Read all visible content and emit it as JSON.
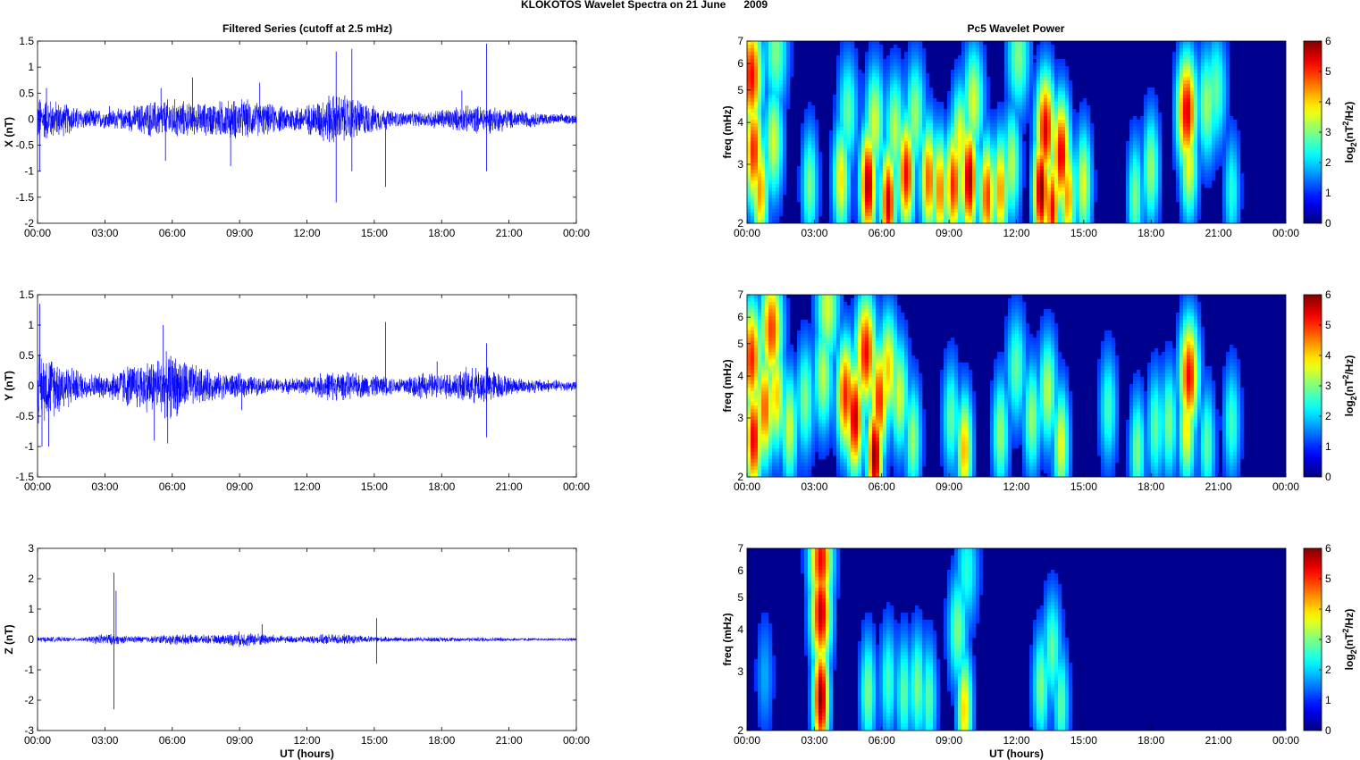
{
  "figure": {
    "title": "KLOKOTOS Wavelet Spectra on 21 June      2009",
    "left_title": "Filtered Series (cutoff at 2.5 mHz)",
    "right_title": "Pc5 Wavelet Power",
    "colors": {
      "trace": "#0000ff",
      "axes": "#000000",
      "background": "#00008f"
    }
  },
  "chart_data": [
    {
      "type": "line",
      "ylabel": "X (nT)",
      "xlabel": "",
      "xticks": [
        "00:00",
        "03:00",
        "06:00",
        "09:00",
        "12:00",
        "15:00",
        "18:00",
        "21:00",
        "00:00"
      ],
      "yticks": [
        "1.5",
        "1",
        "0.5",
        "0",
        "-0.5",
        "-1",
        "-1.5",
        "-2"
      ],
      "ylim": [
        -2,
        1.5
      ],
      "series": [
        {
          "color": "#0000ff",
          "activity_hours": [
            0,
            1,
            2,
            3,
            4,
            5,
            6,
            7,
            8,
            9,
            10,
            11,
            12,
            13,
            14,
            15,
            16,
            17,
            18,
            19,
            20,
            21,
            22,
            23,
            24
          ],
          "activity_amplitude": [
            0.45,
            0.35,
            0.2,
            0.18,
            0.22,
            0.35,
            0.4,
            0.3,
            0.35,
            0.4,
            0.32,
            0.25,
            0.28,
            0.5,
            0.45,
            0.25,
            0.15,
            0.14,
            0.2,
            0.25,
            0.28,
            0.2,
            0.15,
            0.1,
            0.1
          ],
          "spikes": [
            [
              0.1,
              -1.0
            ],
            [
              0.4,
              0.6
            ],
            [
              3.2,
              0.25
            ],
            [
              5.5,
              0.6
            ],
            [
              5.7,
              -0.8
            ],
            [
              6.9,
              0.8
            ],
            [
              8.6,
              -0.9
            ],
            [
              9.9,
              0.7
            ],
            [
              13.3,
              1.3
            ],
            [
              13.3,
              -1.6
            ],
            [
              14.0,
              1.35
            ],
            [
              14.0,
              -1.0
            ],
            [
              15.5,
              -1.3
            ],
            [
              18.9,
              0.55
            ],
            [
              20.0,
              1.45
            ],
            [
              20.0,
              -1.0
            ]
          ]
        }
      ]
    },
    {
      "type": "line",
      "ylabel": "Y (nT)",
      "xlabel": "",
      "xticks": [
        "00:00",
        "03:00",
        "06:00",
        "09:00",
        "12:00",
        "15:00",
        "18:00",
        "21:00",
        "00:00"
      ],
      "yticks": [
        "1.5",
        "1",
        "0.5",
        "0",
        "-0.5",
        "-1",
        "-1.5"
      ],
      "ylim": [
        -1.5,
        1.5
      ],
      "series": [
        {
          "color": "#0000ff",
          "activity_hours": [
            0,
            1,
            2,
            3,
            4,
            5,
            6,
            7,
            8,
            9,
            10,
            11,
            12,
            13,
            14,
            15,
            16,
            17,
            18,
            19,
            20,
            21,
            22,
            23,
            24
          ],
          "activity_amplitude": [
            0.6,
            0.45,
            0.22,
            0.2,
            0.35,
            0.45,
            0.55,
            0.35,
            0.22,
            0.2,
            0.14,
            0.12,
            0.15,
            0.25,
            0.22,
            0.18,
            0.14,
            0.22,
            0.2,
            0.28,
            0.32,
            0.15,
            0.12,
            0.1,
            0.08
          ],
          "spikes": [
            [
              0.1,
              1.35
            ],
            [
              0.2,
              -1.0
            ],
            [
              0.5,
              -1.0
            ],
            [
              5.2,
              -0.9
            ],
            [
              5.6,
              1.0
            ],
            [
              5.8,
              -0.95
            ],
            [
              9.1,
              -0.4
            ],
            [
              15.5,
              1.05
            ],
            [
              17.8,
              0.4
            ],
            [
              20.0,
              0.7
            ],
            [
              20.0,
              -0.85
            ]
          ]
        }
      ]
    },
    {
      "type": "line",
      "ylabel": "Z (nT)",
      "xlabel": "UT (hours)",
      "xticks": [
        "00:00",
        "03:00",
        "06:00",
        "09:00",
        "12:00",
        "15:00",
        "18:00",
        "21:00",
        "00:00"
      ],
      "yticks": [
        "3",
        "2",
        "1",
        "0",
        "-1",
        "-2",
        "-3"
      ],
      "ylim": [
        -3,
        3
      ],
      "series": [
        {
          "color": "#0000ff",
          "activity_hours": [
            0,
            1,
            2,
            3,
            4,
            5,
            6,
            7,
            8,
            9,
            10,
            11,
            12,
            13,
            14,
            15,
            16,
            17,
            18,
            19,
            20,
            21,
            22,
            23,
            24
          ],
          "activity_amplitude": [
            0.1,
            0.08,
            0.06,
            0.2,
            0.12,
            0.12,
            0.18,
            0.15,
            0.15,
            0.25,
            0.2,
            0.12,
            0.12,
            0.18,
            0.15,
            0.1,
            0.08,
            0.08,
            0.08,
            0.07,
            0.08,
            0.06,
            0.05,
            0.05,
            0.05
          ],
          "spikes": [
            [
              3.4,
              2.2
            ],
            [
              3.4,
              -2.3
            ],
            [
              3.5,
              1.6
            ],
            [
              10.0,
              0.5
            ],
            [
              15.1,
              0.7
            ],
            [
              15.1,
              -0.8
            ]
          ]
        }
      ]
    },
    {
      "type": "heatmap",
      "xlabel": "",
      "ylabel": "freq (mHz)",
      "xticks": [
        "00:00",
        "03:00",
        "06:00",
        "09:00",
        "12:00",
        "15:00",
        "18:00",
        "21:00",
        "00:00"
      ],
      "yticks": [
        "7",
        "6",
        "5",
        "4",
        "3",
        "2"
      ],
      "ylim": [
        2,
        7
      ],
      "yscale": "log",
      "colorbar": {
        "label_base": "log",
        "label_sub": "2",
        "label_main": "(nT",
        "label_sup": "2",
        "label_end": "/Hz)",
        "ticks": [
          "6",
          "5",
          "4",
          "3",
          "2",
          "1",
          "0"
        ],
        "range": [
          0,
          6
        ]
      },
      "blobs": [
        {
          "t": 0.2,
          "f": 5.5,
          "p": 5.2
        },
        {
          "t": 0.3,
          "f": 3.3,
          "p": 5.0
        },
        {
          "t": 0.6,
          "f": 2.5,
          "p": 4.2
        },
        {
          "t": 1.2,
          "f": 3.5,
          "p": 3.2
        },
        {
          "t": 1.3,
          "f": 6.5,
          "p": 2.6
        },
        {
          "t": 2.8,
          "f": 2.6,
          "p": 2.6
        },
        {
          "t": 4.2,
          "f": 2.7,
          "p": 3.6
        },
        {
          "t": 4.5,
          "f": 4.3,
          "p": 2.4
        },
        {
          "t": 5.4,
          "f": 2.6,
          "p": 5.8
        },
        {
          "t": 5.7,
          "f": 4.0,
          "p": 3.2
        },
        {
          "t": 6.3,
          "f": 2.3,
          "p": 5.5
        },
        {
          "t": 6.6,
          "f": 3.8,
          "p": 3.0
        },
        {
          "t": 7.1,
          "f": 2.8,
          "p": 5.2
        },
        {
          "t": 7.5,
          "f": 4.2,
          "p": 2.8
        },
        {
          "t": 8.1,
          "f": 2.7,
          "p": 4.6
        },
        {
          "t": 8.6,
          "f": 2.5,
          "p": 4.4
        },
        {
          "t": 9.2,
          "f": 2.6,
          "p": 5.0
        },
        {
          "t": 9.5,
          "f": 3.5,
          "p": 3.5
        },
        {
          "t": 9.9,
          "f": 2.7,
          "p": 5.8
        },
        {
          "t": 10.1,
          "f": 4.6,
          "p": 3.2
        },
        {
          "t": 10.7,
          "f": 2.4,
          "p": 4.8
        },
        {
          "t": 11.3,
          "f": 2.5,
          "p": 4.2
        },
        {
          "t": 11.8,
          "f": 3.0,
          "p": 3.0
        },
        {
          "t": 12.1,
          "f": 6.3,
          "p": 2.6
        },
        {
          "t": 13.1,
          "f": 2.5,
          "p": 6.0
        },
        {
          "t": 13.3,
          "f": 3.8,
          "p": 5.4
        },
        {
          "t": 13.6,
          "f": 2.2,
          "p": 5.2
        },
        {
          "t": 14.0,
          "f": 3.2,
          "p": 5.4
        },
        {
          "t": 14.3,
          "f": 2.4,
          "p": 4.2
        },
        {
          "t": 15.0,
          "f": 2.6,
          "p": 3.3
        },
        {
          "t": 17.3,
          "f": 2.4,
          "p": 2.6
        },
        {
          "t": 18.0,
          "f": 2.9,
          "p": 2.8
        },
        {
          "t": 19.6,
          "f": 4.3,
          "p": 5.4
        },
        {
          "t": 19.7,
          "f": 3.0,
          "p": 3.4
        },
        {
          "t": 20.5,
          "f": 4.5,
          "p": 2.8
        },
        {
          "t": 20.9,
          "f": 5.0,
          "p": 2.4
        },
        {
          "t": 21.6,
          "f": 2.5,
          "p": 2.0
        }
      ]
    },
    {
      "type": "heatmap",
      "xlabel": "",
      "ylabel": "freq (mHz)",
      "xticks": [
        "00:00",
        "03:00",
        "06:00",
        "09:00",
        "12:00",
        "15:00",
        "18:00",
        "21:00",
        "00:00"
      ],
      "yticks": [
        "7",
        "6",
        "5",
        "4",
        "3",
        "2"
      ],
      "ylim": [
        2,
        7
      ],
      "yscale": "log",
      "colorbar": {
        "label_base": "log",
        "label_sub": "2",
        "label_main": "(nT",
        "label_sup": "2",
        "label_end": "/Hz)",
        "ticks": [
          "6",
          "5",
          "4",
          "3",
          "2",
          "1",
          "0"
        ],
        "range": [
          0,
          6
        ]
      },
      "blobs": [
        {
          "t": 0.2,
          "f": 4.5,
          "p": 5.0
        },
        {
          "t": 0.3,
          "f": 2.6,
          "p": 5.4
        },
        {
          "t": 0.8,
          "f": 3.2,
          "p": 4.6
        },
        {
          "t": 1.1,
          "f": 5.5,
          "p": 4.8
        },
        {
          "t": 1.3,
          "f": 3.5,
          "p": 3.8
        },
        {
          "t": 1.9,
          "f": 2.8,
          "p": 3.2
        },
        {
          "t": 2.6,
          "f": 3.4,
          "p": 2.6
        },
        {
          "t": 3.4,
          "f": 4.0,
          "p": 3.0
        },
        {
          "t": 3.6,
          "f": 6.4,
          "p": 3.2
        },
        {
          "t": 4.4,
          "f": 3.5,
          "p": 5.0
        },
        {
          "t": 4.8,
          "f": 3.0,
          "p": 5.6
        },
        {
          "t": 5.3,
          "f": 4.7,
          "p": 5.2
        },
        {
          "t": 5.7,
          "f": 2.3,
          "p": 6.0
        },
        {
          "t": 5.9,
          "f": 3.4,
          "p": 5.0
        },
        {
          "t": 6.3,
          "f": 4.2,
          "p": 3.8
        },
        {
          "t": 6.8,
          "f": 3.5,
          "p": 3.2
        },
        {
          "t": 7.4,
          "f": 2.6,
          "p": 2.8
        },
        {
          "t": 9.1,
          "f": 3.0,
          "p": 2.4
        },
        {
          "t": 9.7,
          "f": 2.4,
          "p": 4.0
        },
        {
          "t": 11.3,
          "f": 2.7,
          "p": 2.8
        },
        {
          "t": 12.0,
          "f": 4.2,
          "p": 2.4
        },
        {
          "t": 12.7,
          "f": 3.0,
          "p": 2.8
        },
        {
          "t": 13.4,
          "f": 3.6,
          "p": 3.0
        },
        {
          "t": 14.0,
          "f": 2.5,
          "p": 3.4
        },
        {
          "t": 16.1,
          "f": 3.2,
          "p": 2.2
        },
        {
          "t": 17.4,
          "f": 2.4,
          "p": 2.6
        },
        {
          "t": 18.2,
          "f": 2.8,
          "p": 2.4
        },
        {
          "t": 18.8,
          "f": 2.9,
          "p": 2.6
        },
        {
          "t": 19.7,
          "f": 4.0,
          "p": 5.2
        },
        {
          "t": 19.6,
          "f": 2.8,
          "p": 3.6
        },
        {
          "t": 20.5,
          "f": 2.5,
          "p": 2.4
        },
        {
          "t": 21.6,
          "f": 2.9,
          "p": 2.2
        }
      ]
    },
    {
      "type": "heatmap",
      "xlabel": "UT (hours)",
      "ylabel": "freq (mHz)",
      "xticks": [
        "00:00",
        "03:00",
        "06:00",
        "09:00",
        "12:00",
        "15:00",
        "18:00",
        "21:00",
        "00:00"
      ],
      "yticks": [
        "7",
        "6",
        "5",
        "4",
        "3",
        "2"
      ],
      "ylim": [
        2,
        7
      ],
      "yscale": "log",
      "colorbar": {
        "label_base": "log",
        "label_sub": "2",
        "label_main": "(nT",
        "label_sup": "2",
        "label_end": "/Hz)",
        "ticks": [
          "6",
          "5",
          "4",
          "3",
          "2",
          "1",
          "0"
        ],
        "range": [
          0,
          6
        ]
      },
      "blobs": [
        {
          "t": 3.3,
          "f": 2.5,
          "p": 6.0
        },
        {
          "t": 3.3,
          "f": 4.5,
          "p": 5.6
        },
        {
          "t": 3.3,
          "f": 6.5,
          "p": 5.2
        },
        {
          "t": 5.4,
          "f": 2.6,
          "p": 2.6
        },
        {
          "t": 6.3,
          "f": 2.8,
          "p": 2.2
        },
        {
          "t": 7.0,
          "f": 2.6,
          "p": 2.4
        },
        {
          "t": 7.6,
          "f": 2.7,
          "p": 2.6
        },
        {
          "t": 8.1,
          "f": 2.5,
          "p": 2.4
        },
        {
          "t": 9.4,
          "f": 4.0,
          "p": 2.6
        },
        {
          "t": 9.7,
          "f": 2.3,
          "p": 3.8
        },
        {
          "t": 9.8,
          "f": 6.0,
          "p": 2.0
        },
        {
          "t": 13.1,
          "f": 2.7,
          "p": 2.6
        },
        {
          "t": 13.6,
          "f": 3.5,
          "p": 2.4
        },
        {
          "t": 14.0,
          "f": 2.4,
          "p": 2.4
        },
        {
          "t": 0.8,
          "f": 2.9,
          "p": 1.2
        }
      ]
    }
  ]
}
